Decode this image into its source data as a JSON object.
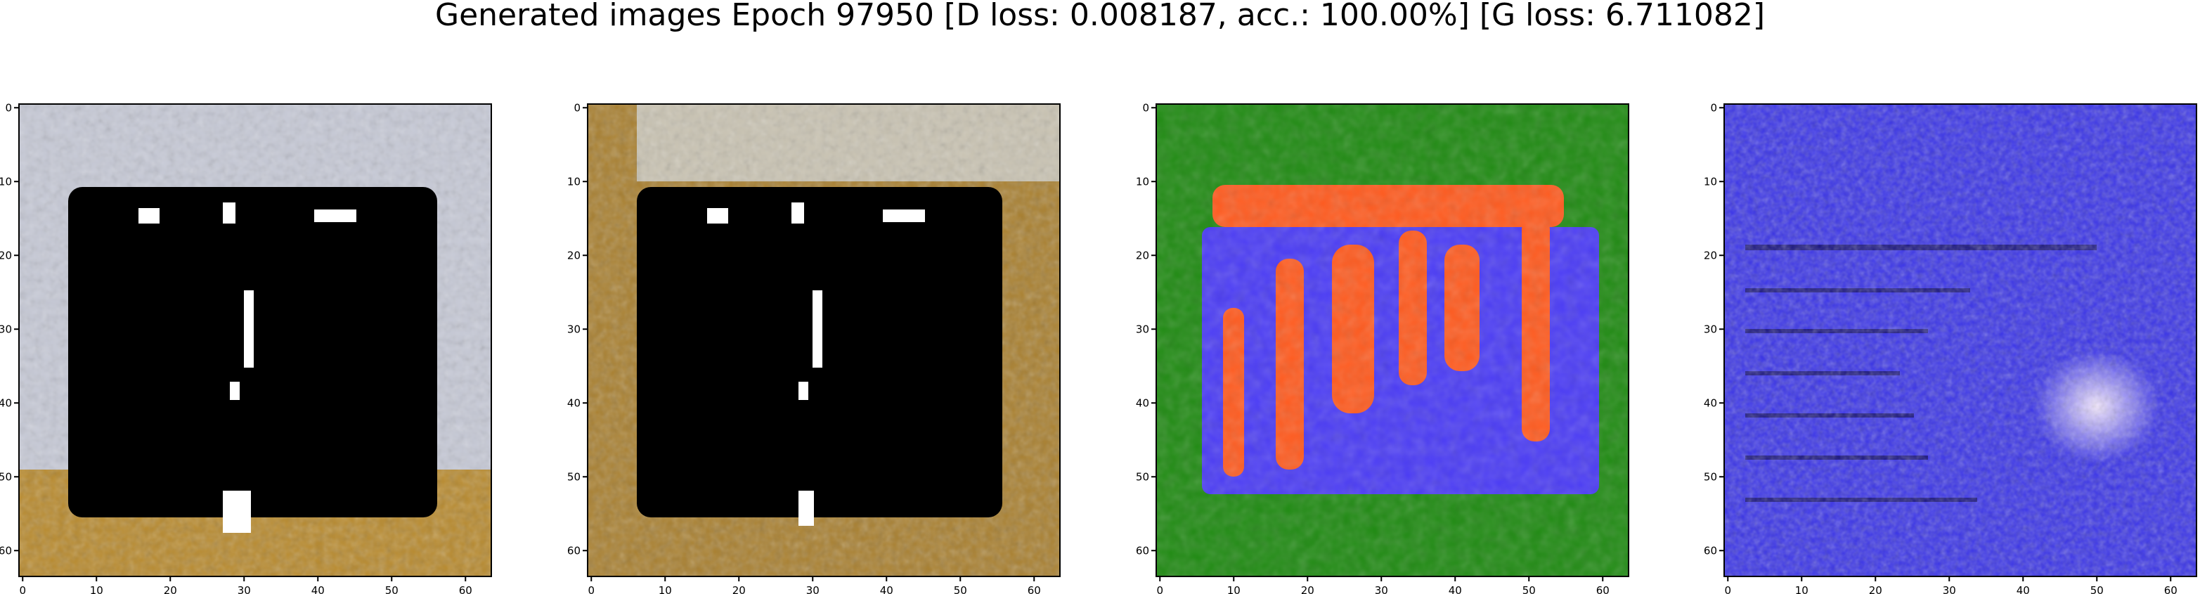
{
  "figure": {
    "title": "Generated images Epoch 97950 [D loss: 0.008187, acc.: 100.00%] [G loss: 6.711082]"
  },
  "axes_ticks": {
    "x": [
      "0",
      "10",
      "20",
      "30",
      "40",
      "50",
      "60"
    ],
    "y": [
      "0",
      "10",
      "20",
      "30",
      "40",
      "50",
      "60"
    ]
  },
  "panels": [
    {
      "name": "sample-1",
      "description": "pale grey-white border with a large black square center, small white specks, ochre bottom band",
      "colors": {
        "border": "#c6c9d6",
        "center": "#000000",
        "bottom": "#b88a2e",
        "specks": "#ffffff"
      }
    },
    {
      "name": "sample-2",
      "description": "ochre/brown left and bottom border, light grey top, large black square center with white specks",
      "colors": {
        "border": "#a98030",
        "top": "#c9c3b2",
        "center": "#000000",
        "specks": "#ffffff"
      }
    },
    {
      "name": "sample-3",
      "description": "green background with blue block overlaid by orange-red blob shapes",
      "colors": {
        "background": "#1f8a12",
        "block": "#4a3bf5",
        "blobs": "#ff5a1e"
      }
    },
    {
      "name": "sample-4",
      "description": "noisy blue field with dark horizontal streaks and a bright white-pink patch on the lower right",
      "colors": {
        "background": "#3a34e8",
        "streaks": "#1a1580",
        "patch": "#f4e8ff"
      }
    }
  ]
}
